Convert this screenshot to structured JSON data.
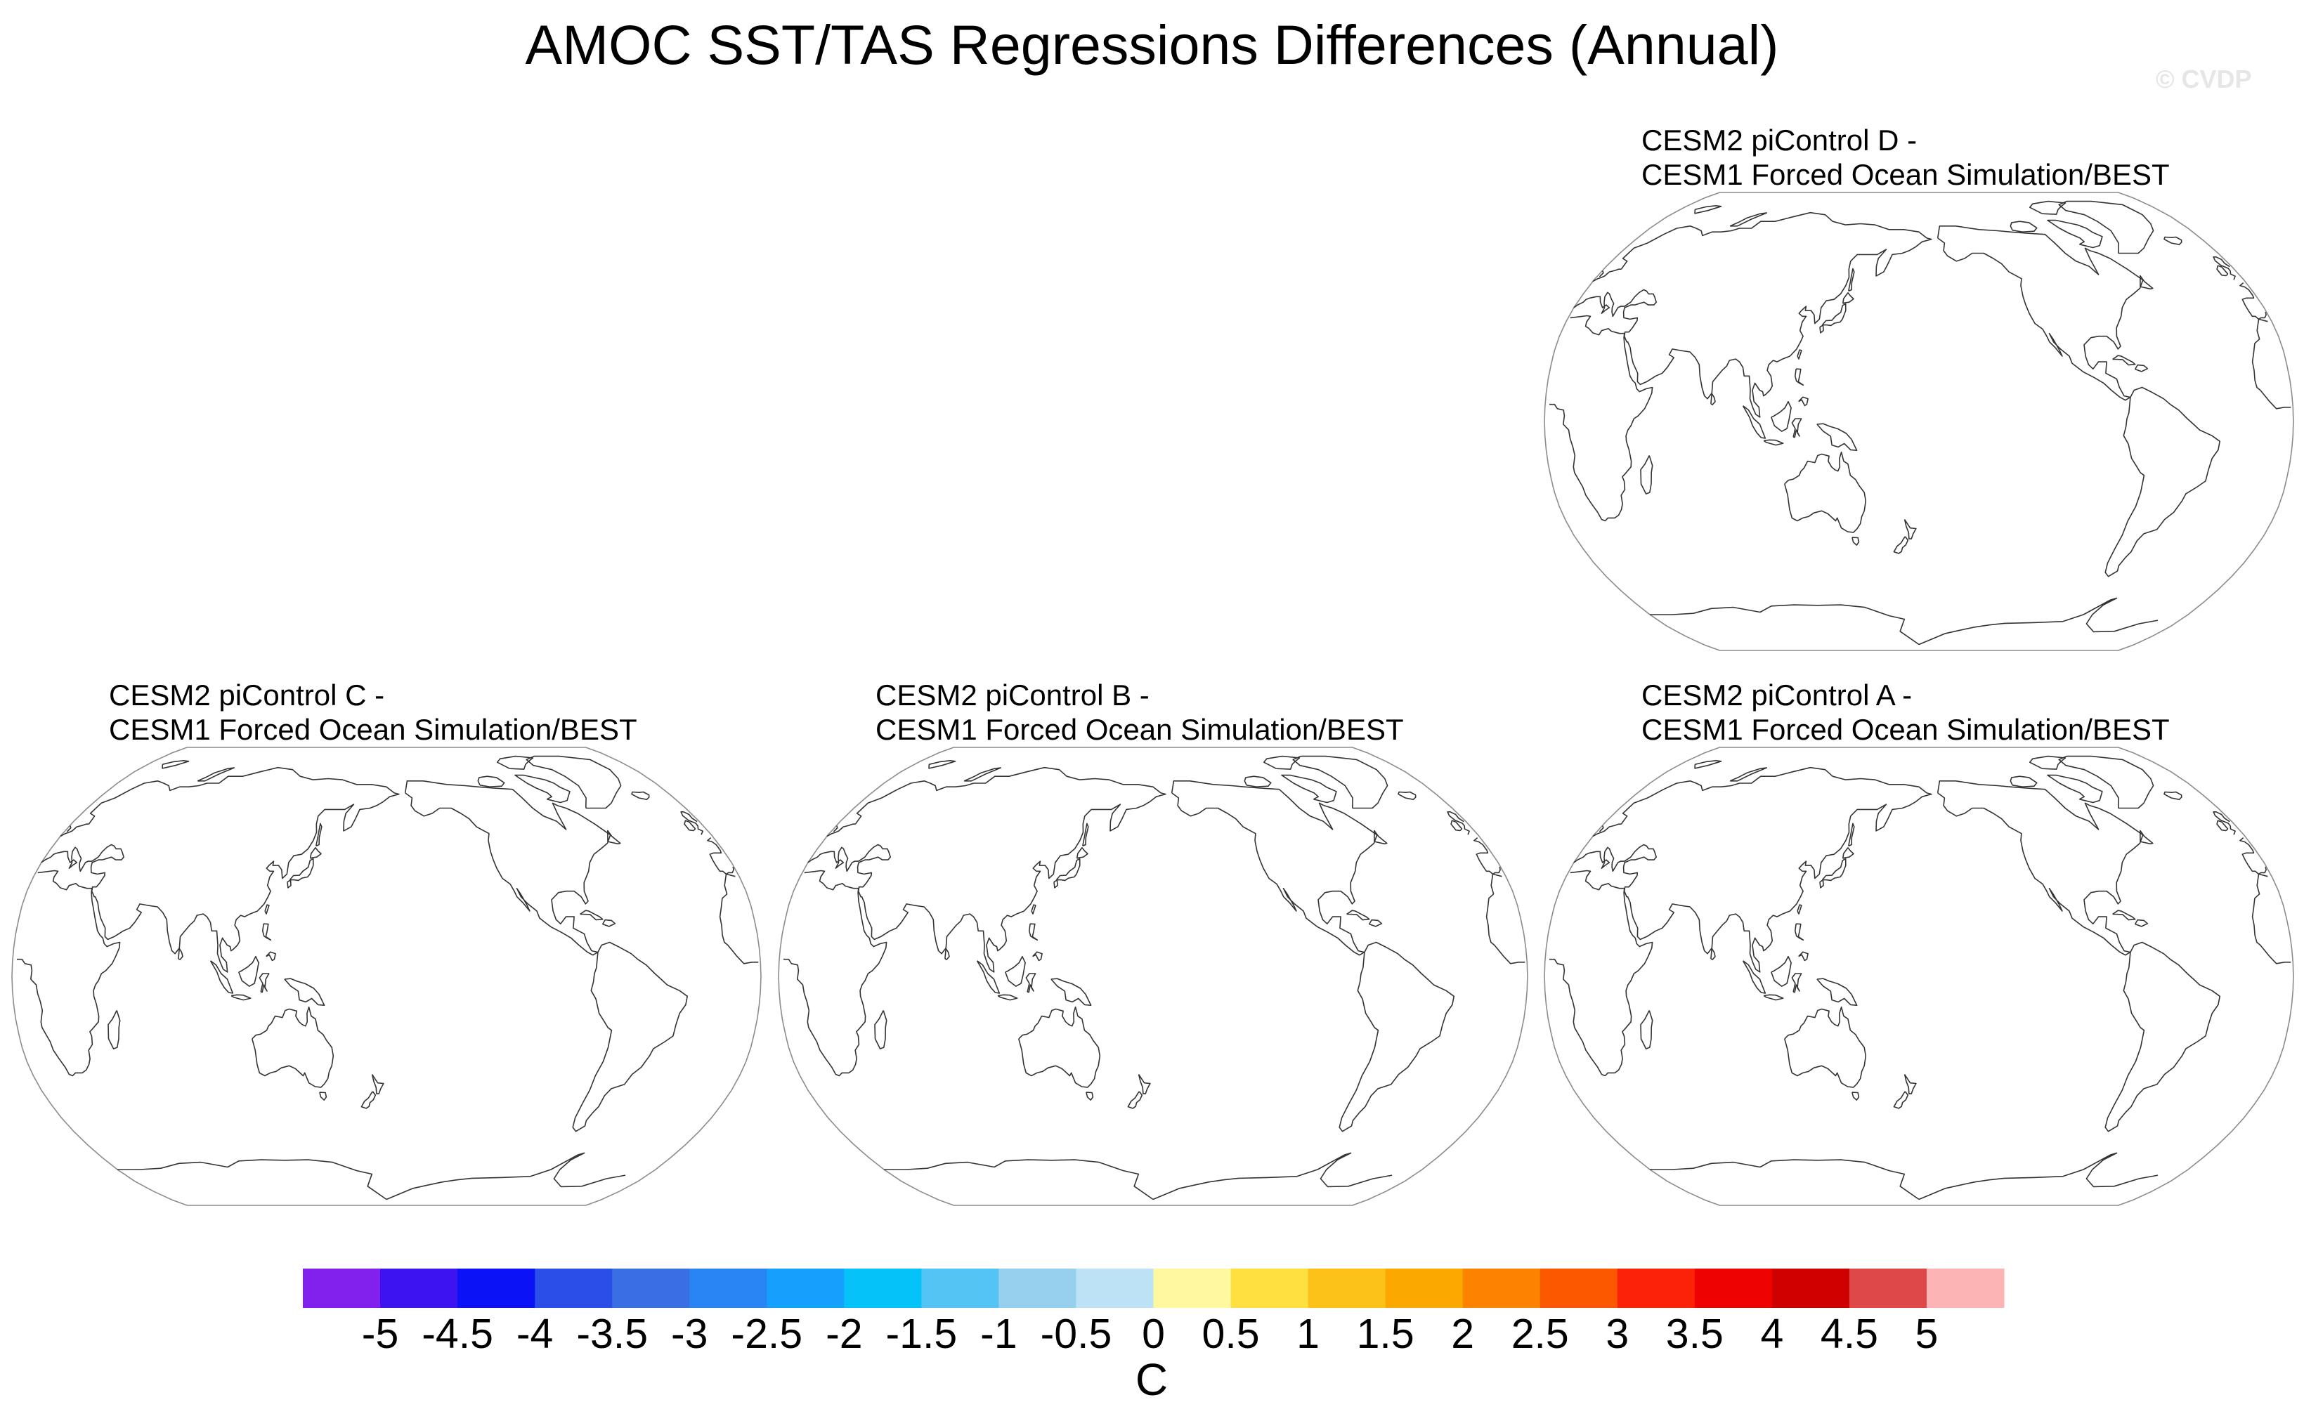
{
  "chart_data": {
    "type": "map",
    "title": "AMOC SST/TAS Regressions Differences (Annual)",
    "watermark": "© CVDP",
    "projection": "Robinson (Pacific-centered)",
    "panels": [
      {
        "id": "D",
        "line1": "CESM2 piControl D -",
        "line2": "CESM1 Forced Ocean Simulation/BEST"
      },
      {
        "id": "C",
        "line1": "CESM2 piControl C -",
        "line2": "CESM1 Forced Ocean Simulation/BEST"
      },
      {
        "id": "B",
        "line1": "CESM2 piControl B -",
        "line2": "CESM1 Forced Ocean Simulation/BEST"
      },
      {
        "id": "A",
        "line1": "CESM2 piControl A -",
        "line2": "CESM1 Forced Ocean Simulation/BEST"
      }
    ],
    "colorbar": {
      "unit": "C",
      "levels": [
        "-5",
        "-4.5",
        "-4",
        "-3.5",
        "-3",
        "-2.5",
        "-2",
        "-1.5",
        "-1",
        "-0.5",
        "0",
        "0.5",
        "1",
        "1.5",
        "2",
        "2.5",
        "3",
        "3.5",
        "4",
        "4.5",
        "5"
      ],
      "colors": [
        "#8220ee",
        "#3d13f0",
        "#0c12f6",
        "#2b4ee8",
        "#3a6fe4",
        "#2a85f4",
        "#14a0fc",
        "#05c2f8",
        "#54c4f4",
        "#96d0ee",
        "#bde2f6",
        "#fff8a0",
        "#ffe040",
        "#fcc218",
        "#fba800",
        "#fc8200",
        "#fc5800",
        "#fb2208",
        "#ee0202",
        "#cf0000",
        "#de4848",
        "#fcb4b4"
      ]
    }
  }
}
